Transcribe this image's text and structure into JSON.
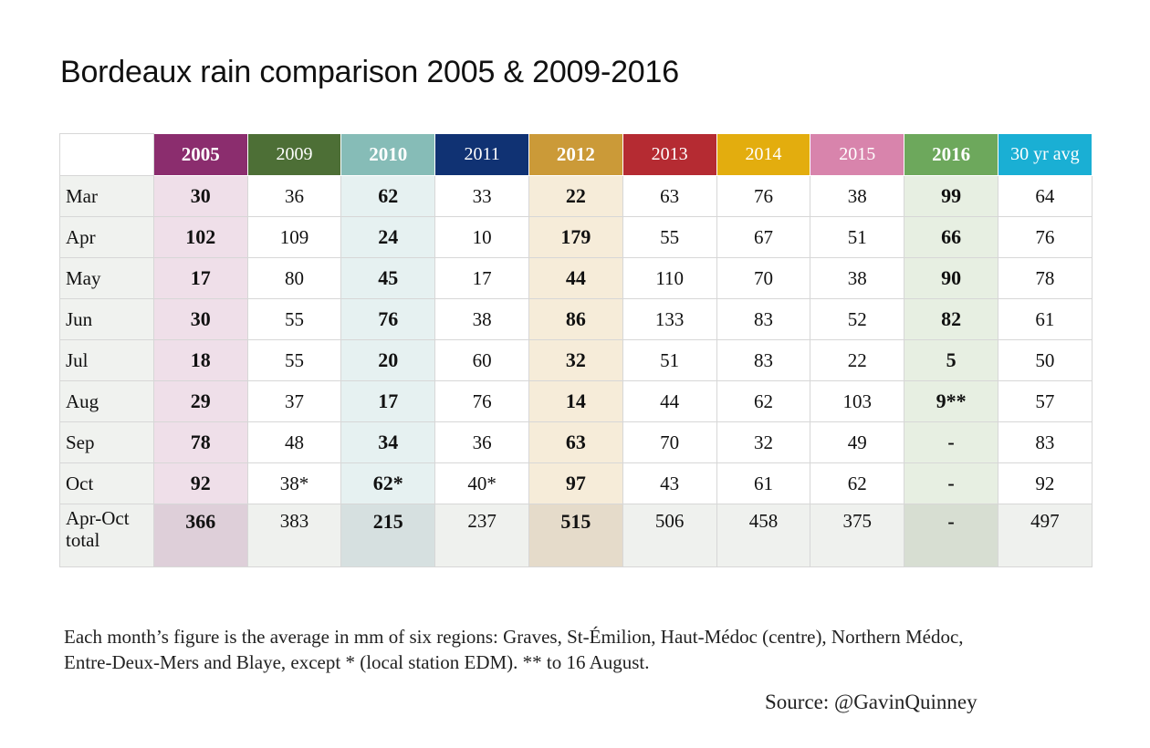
{
  "title": "Bordeaux rain comparison 2005 & 2009-2016",
  "chart_data": {
    "type": "table",
    "title": "Bordeaux rain comparison 2005 & 2009-2016",
    "columns": [
      {
        "label": "2005",
        "color": "#8b2d6e",
        "highlight": true,
        "tint": "#efdfe9"
      },
      {
        "label": "2009",
        "color": "#4d6f36",
        "highlight": false,
        "tint": "#ffffff"
      },
      {
        "label": "2010",
        "color": "#86bcb7",
        "highlight": true,
        "tint": "#e6f1f1"
      },
      {
        "label": "2011",
        "color": "#103273",
        "highlight": false,
        "tint": "#ffffff"
      },
      {
        "label": "2012",
        "color": "#cb9a38",
        "highlight": true,
        "tint": "#f6ecd9"
      },
      {
        "label": "2013",
        "color": "#b52b32",
        "highlight": false,
        "tint": "#ffffff"
      },
      {
        "label": "2014",
        "color": "#e3ad0e",
        "highlight": false,
        "tint": "#ffffff"
      },
      {
        "label": "2015",
        "color": "#d884ac",
        "highlight": false,
        "tint": "#ffffff"
      },
      {
        "label": "2016",
        "color": "#6da85c",
        "highlight": true,
        "tint": "#e7efe2"
      },
      {
        "label": "30 yr avg",
        "color": "#1aafd4",
        "highlight": false,
        "tint": "#ffffff"
      }
    ],
    "rows": [
      {
        "label": "Mar",
        "values": [
          "30",
          "36",
          "62",
          "33",
          "22",
          "63",
          "76",
          "38",
          "99",
          "64"
        ]
      },
      {
        "label": "Apr",
        "values": [
          "102",
          "109",
          "24",
          "10",
          "179",
          "55",
          "67",
          "51",
          "66",
          "76"
        ]
      },
      {
        "label": "May",
        "values": [
          "17",
          "80",
          "45",
          "17",
          "44",
          "110",
          "70",
          "38",
          "90",
          "78"
        ]
      },
      {
        "label": "Jun",
        "values": [
          "30",
          "55",
          "76",
          "38",
          "86",
          "133",
          "83",
          "52",
          "82",
          "61"
        ]
      },
      {
        "label": "Jul",
        "values": [
          "18",
          "55",
          "20",
          "60",
          "32",
          "51",
          "83",
          "22",
          "5",
          "50"
        ]
      },
      {
        "label": "Aug",
        "values": [
          "29",
          "37",
          "17",
          "76",
          "14",
          "44",
          "62",
          "103",
          "9**",
          "57"
        ]
      },
      {
        "label": "Sep",
        "values": [
          "78",
          "48",
          "34",
          "36",
          "63",
          "70",
          "32",
          "49",
          "-",
          "83"
        ]
      },
      {
        "label": "Oct",
        "values": [
          "92",
          "38*",
          "62*",
          "40*",
          "97",
          "43",
          "61",
          "62",
          "-",
          "92"
        ]
      }
    ],
    "total": {
      "label_line1": "Apr-Oct",
      "label_line2": "total",
      "values": [
        "366",
        "383",
        "215",
        "237",
        "515",
        "506",
        "458",
        "375",
        "-",
        "497"
      ],
      "tint": "#eff1ee"
    }
  },
  "note": {
    "line1": "Each month’s figure is the average in mm of six regions: Graves, St-Émilion, Haut-Médoc (centre), Northern Médoc,",
    "line2": "Entre-Deux-Mers and Blaye, except * (local station EDM). ** to 16 August."
  },
  "source": "Source: @GavinQuinney"
}
